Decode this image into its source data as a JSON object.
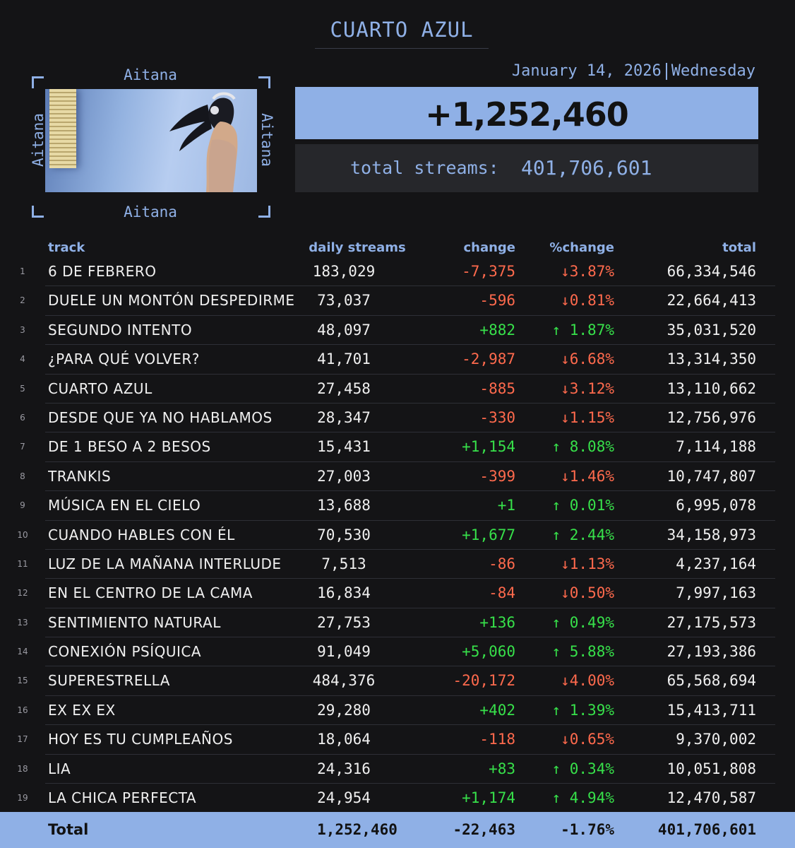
{
  "header": {
    "title": "CUARTO AZUL"
  },
  "cover": {
    "artist": "Aitana"
  },
  "summary": {
    "date": "January 14, 2026",
    "weekday": "Wednesday",
    "daily_gain": "+1,252,460",
    "total_label": "total streams:",
    "total_value": "401,706,601"
  },
  "table": {
    "headers": {
      "track": "track",
      "daily": "daily streams",
      "change": "change",
      "pct": "%change",
      "total": "total"
    },
    "rows": [
      {
        "n": "1",
        "track": "6 DE FEBRERO",
        "daily": "183,029",
        "change": "-7,375",
        "pct": "↓3.87%",
        "total": "66,334,546",
        "dir": "neg"
      },
      {
        "n": "2",
        "track": "DUELE UN MONTÓN DESPEDIRME",
        "daily": "73,037",
        "change": "-596",
        "pct": "↓0.81%",
        "total": "22,664,413",
        "dir": "neg"
      },
      {
        "n": "3",
        "track": "SEGUNDO INTENTO",
        "daily": "48,097",
        "change": "+882",
        "pct": "↑ 1.87%",
        "total": "35,031,520",
        "dir": "pos"
      },
      {
        "n": "4",
        "track": "¿PARA QUÉ VOLVER?",
        "daily": "41,701",
        "change": "-2,987",
        "pct": "↓6.68%",
        "total": "13,314,350",
        "dir": "neg"
      },
      {
        "n": "5",
        "track": "CUARTO AZUL",
        "daily": "27,458",
        "change": "-885",
        "pct": "↓3.12%",
        "total": "13,110,662",
        "dir": "neg"
      },
      {
        "n": "6",
        "track": "DESDE QUE YA NO HABLAMOS",
        "daily": "28,347",
        "change": "-330",
        "pct": "↓1.15%",
        "total": "12,756,976",
        "dir": "neg"
      },
      {
        "n": "7",
        "track": "DE 1 BESO A 2 BESOS",
        "daily": "15,431",
        "change": "+1,154",
        "pct": "↑ 8.08%",
        "total": "7,114,188",
        "dir": "pos"
      },
      {
        "n": "8",
        "track": "TRANKIS",
        "daily": "27,003",
        "change": "-399",
        "pct": "↓1.46%",
        "total": "10,747,807",
        "dir": "neg"
      },
      {
        "n": "9",
        "track": "MÚSICA EN EL CIELO",
        "daily": "13,688",
        "change": "+1",
        "pct": "↑ 0.01%",
        "total": "6,995,078",
        "dir": "pos"
      },
      {
        "n": "10",
        "track": "CUANDO HABLES CON ÉL",
        "daily": "70,530",
        "change": "+1,677",
        "pct": "↑ 2.44%",
        "total": "34,158,973",
        "dir": "pos"
      },
      {
        "n": "11",
        "track": "LUZ DE LA MAÑANA INTERLUDE",
        "daily": "7,513",
        "change": "-86",
        "pct": "↓1.13%",
        "total": "4,237,164",
        "dir": "neg"
      },
      {
        "n": "12",
        "track": "EN EL CENTRO DE LA CAMA",
        "daily": "16,834",
        "change": "-84",
        "pct": "↓0.50%",
        "total": "7,997,163",
        "dir": "neg"
      },
      {
        "n": "13",
        "track": "SENTIMIENTO NATURAL",
        "daily": "27,753",
        "change": "+136",
        "pct": "↑ 0.49%",
        "total": "27,175,573",
        "dir": "pos"
      },
      {
        "n": "14",
        "track": "CONEXIÓN PSÍQUICA",
        "daily": "91,049",
        "change": "+5,060",
        "pct": "↑ 5.88%",
        "total": "27,193,386",
        "dir": "pos"
      },
      {
        "n": "15",
        "track": "SUPERESTRELLA",
        "daily": "484,376",
        "change": "-20,172",
        "pct": "↓4.00%",
        "total": "65,568,694",
        "dir": "neg"
      },
      {
        "n": "16",
        "track": "EX EX EX",
        "daily": "29,280",
        "change": "+402",
        "pct": "↑ 1.39%",
        "total": "15,413,711",
        "dir": "pos"
      },
      {
        "n": "17",
        "track": "HOY ES TU CUMPLEAÑOS",
        "daily": "18,064",
        "change": "-118",
        "pct": "↓0.65%",
        "total": "9,370,002",
        "dir": "neg"
      },
      {
        "n": "18",
        "track": "LIA",
        "daily": "24,316",
        "change": "+83",
        "pct": "↑ 0.34%",
        "total": "10,051,808",
        "dir": "pos"
      },
      {
        "n": "19",
        "track": "LA CHICA PERFECTA",
        "daily": "24,954",
        "change": "+1,174",
        "pct": "↑ 4.94%",
        "total": "12,470,587",
        "dir": "pos"
      }
    ],
    "footer": {
      "label": "Total",
      "daily": "1,252,460",
      "change": "-22,463",
      "pct": "-1.76%",
      "total": "401,706,601"
    }
  },
  "colors": {
    "accent": "#8fb0e6",
    "background": "#141416",
    "positive": "#37e04a",
    "negative": "#ff6a4d"
  }
}
